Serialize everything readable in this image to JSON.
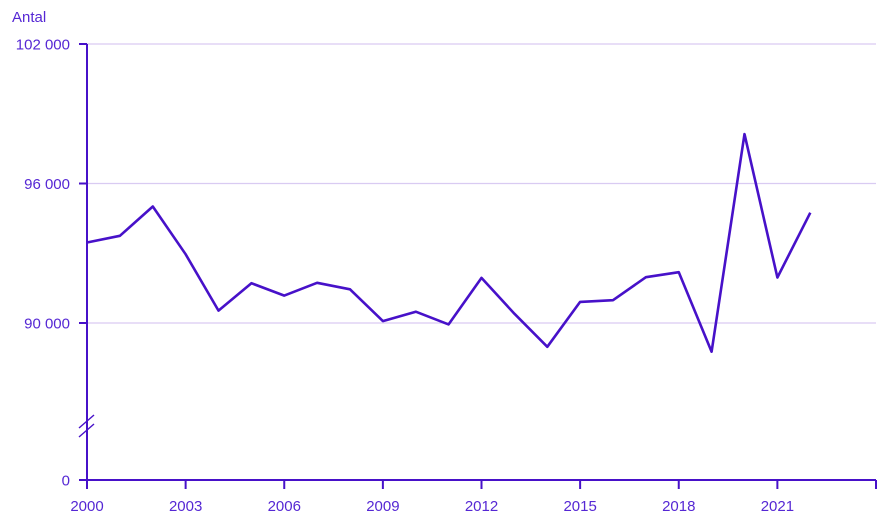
{
  "chart_data": {
    "type": "line",
    "title": "",
    "ylabel": "Antal",
    "xlabel": "",
    "legend": "none",
    "grid": "horizontal",
    "x": [
      2000,
      2001,
      2002,
      2003,
      2004,
      2005,
      2006,
      2007,
      2008,
      2009,
      2010,
      2011,
      2012,
      2013,
      2014,
      2015,
      2016,
      2017,
      2018,
      2019,
      2020,
      2021,
      2022
    ],
    "series": [
      {
        "name": "Antal",
        "values": [
          93461,
          93752,
          95009,
          92961,
          90532,
          91710,
          91177,
          91729,
          91449,
          90080,
          90487,
          89938,
          91938,
          90402,
          88976,
          90907,
          90982,
          91972,
          92185,
          88766,
          98124,
          91958,
          94744
        ]
      }
    ],
    "y_axis": {
      "has_break_above_zero": true,
      "ticks": [
        {
          "value": 102000,
          "label": "102 000"
        },
        {
          "value": 96000,
          "label": "96 000"
        },
        {
          "value": 90000,
          "label": "90 000"
        },
        {
          "value": 0,
          "label": "0"
        }
      ]
    },
    "x_axis": {
      "ticks": [
        {
          "year": 2000,
          "label": "2000"
        },
        {
          "year": 2003,
          "label": "2003"
        },
        {
          "year": 2006,
          "label": "2006"
        },
        {
          "year": 2009,
          "label": "2009"
        },
        {
          "year": 2012,
          "label": "2012"
        },
        {
          "year": 2015,
          "label": "2015"
        },
        {
          "year": 2018,
          "label": "2018"
        },
        {
          "year": 2021,
          "label": "2021"
        },
        {
          "year": 2024,
          "label": ""
        }
      ]
    },
    "colors": {
      "line": "#4711c9",
      "axis": "#4711c9",
      "labels": "#5527d4",
      "grid": "#d9cbf2"
    }
  }
}
